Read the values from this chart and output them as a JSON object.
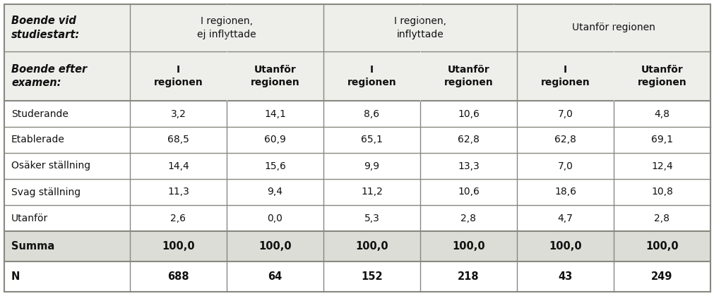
{
  "header_row1_col0": "Boende vid\nstudiestart:",
  "header_row1_col12": "I regionen,\nej inflyttade",
  "header_row1_col34": "I regionen,\ninflyttade",
  "header_row1_col56": "Utanför regionen",
  "header_row2": [
    "Boende efter\nexamen:",
    "I\nregionen",
    "Utanför\nregionen",
    "I\nregionen",
    "Utanför\nregionen",
    "I\nregionen",
    "Utanför\nregionen"
  ],
  "rows": [
    [
      "Studerande",
      "3,2",
      "14,1",
      "8,6",
      "10,6",
      "7,0",
      "4,8"
    ],
    [
      "Etablerade",
      "68,5",
      "60,9",
      "65,1",
      "62,8",
      "62,8",
      "69,1"
    ],
    [
      "Osäker ställning",
      "14,4",
      "15,6",
      "9,9",
      "13,3",
      "7,0",
      "12,4"
    ],
    [
      "Svag ställning",
      "11,3",
      "9,4",
      "11,2",
      "10,6",
      "18,6",
      "10,8"
    ],
    [
      "Utanför",
      "2,6",
      "0,0",
      "5,3",
      "2,8",
      "4,7",
      "2,8"
    ]
  ],
  "summa_row": [
    "Summa",
    "100,0",
    "100,0",
    "100,0",
    "100,0",
    "100,0",
    "100,0"
  ],
  "n_row": [
    "N",
    "688",
    "64",
    "152",
    "218",
    "43",
    "249"
  ],
  "bg_white": "#ffffff",
  "bg_light": "#eeeeea",
  "bg_medium": "#ddddd8",
  "border_dark": "#888880",
  "border_thin": "#aaaaaa",
  "text_dark": "#111111"
}
